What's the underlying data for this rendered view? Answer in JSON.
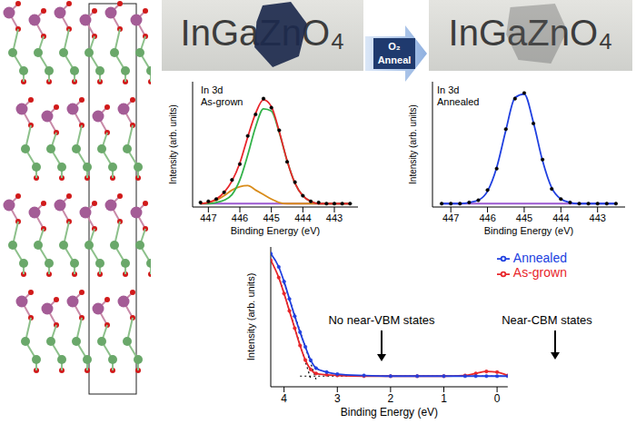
{
  "photos": [
    {
      "text": "InGaZnO₄"
    },
    {
      "text": "InGaZnO₄"
    }
  ],
  "arrow_label": "O₂ Anneal",
  "chart_data": [
    {
      "type": "line",
      "title": "In 3d",
      "subtitle": "As-grown",
      "x_label": "Binding Energy (eV)",
      "y_label": "Intensity (arb. units)",
      "x": [
        447.25,
        447.0,
        446.75,
        446.5,
        446.25,
        446.0,
        445.75,
        445.5,
        445.25,
        445.0,
        444.75,
        444.5,
        444.25,
        444.0,
        443.75,
        443.5,
        443.25,
        443.0,
        442.75,
        442.5
      ],
      "xlim": [
        447.5,
        442.25
      ],
      "xticks": [
        447,
        446,
        445,
        444,
        443
      ],
      "ylim": [
        -0.03,
        1.08
      ],
      "tick_labels": "x",
      "series": [
        {
          "color": "#9b59d0",
          "values": [
            0,
            0,
            0,
            0,
            0,
            0,
            0,
            0,
            0,
            0,
            0,
            0,
            0,
            0,
            0,
            0,
            0,
            0,
            0,
            0
          ]
        },
        {
          "color": "#d98c1a",
          "values": [
            0,
            0.01,
            0.03,
            0.07,
            0.12,
            0.15,
            0.16,
            0.12,
            0.08,
            0.04,
            0.01,
            0,
            0,
            0,
            0,
            0,
            0,
            0,
            0,
            0
          ]
        },
        {
          "color": "#33b24a",
          "values": [
            0,
            0,
            0.01,
            0.03,
            0.08,
            0.21,
            0.43,
            0.68,
            0.84,
            0.82,
            0.63,
            0.38,
            0.18,
            0.07,
            0.02,
            0,
            0,
            0,
            0,
            0
          ]
        },
        {
          "color": "#e8262b",
          "values": [
            0,
            0.01,
            0.04,
            0.1,
            0.2,
            0.36,
            0.59,
            0.8,
            0.92,
            0.86,
            0.64,
            0.38,
            0.18,
            0.07,
            0.02,
            0,
            0,
            0,
            0,
            0
          ]
        },
        {
          "color": "#000000",
          "marker": "circle",
          "line_style": "none",
          "values": [
            0.01,
            0.02,
            0.04,
            0.1,
            0.21,
            0.35,
            0.6,
            0.79,
            0.93,
            0.85,
            0.65,
            0.37,
            0.19,
            0.07,
            0.02,
            0.01,
            0,
            0,
            0,
            0
          ]
        }
      ]
    },
    {
      "type": "line",
      "title": "In 3d",
      "subtitle": "Annealed",
      "x_label": "Binding Energy (eV)",
      "y_label": "Intensity (arb. units)",
      "x": [
        447.25,
        447.0,
        446.75,
        446.5,
        446.25,
        446.0,
        445.75,
        445.5,
        445.25,
        445.0,
        444.75,
        444.5,
        444.25,
        444.0,
        443.75,
        443.5,
        443.25,
        443.0,
        442.75,
        442.5
      ],
      "xlim": [
        447.5,
        442.25
      ],
      "xticks": [
        447,
        446,
        445,
        444,
        443
      ],
      "ylim": [
        -0.03,
        1.08
      ],
      "tick_labels": "x",
      "series": [
        {
          "color": "#9b59d0",
          "values": [
            0,
            0,
            0,
            0,
            0,
            0,
            0,
            0,
            0,
            0,
            0,
            0,
            0,
            0,
            0,
            0,
            0,
            0,
            0,
            0
          ]
        },
        {
          "color": "#2040e0",
          "values": [
            0,
            0,
            0,
            0.01,
            0.03,
            0.11,
            0.32,
            0.65,
            0.94,
            0.97,
            0.72,
            0.38,
            0.14,
            0.04,
            0.01,
            0,
            0,
            0,
            0,
            0
          ]
        },
        {
          "color": "#000000",
          "marker": "circle",
          "line_style": "none",
          "values": [
            0,
            0,
            0,
            0.01,
            0.03,
            0.12,
            0.31,
            0.66,
            0.93,
            0.98,
            0.71,
            0.39,
            0.13,
            0.04,
            0.01,
            0,
            0,
            0,
            0,
            0
          ]
        }
      ]
    },
    {
      "type": "line",
      "x_label": "Binding Energy (eV)",
      "y_label": "Intensity (arb. units)",
      "annotations": [
        "No near-VBM states",
        "Near-CBM states"
      ],
      "legend": "upper right",
      "x": [
        4.25,
        4.1,
        4.0,
        3.9,
        3.8,
        3.7,
        3.6,
        3.5,
        3.4,
        3.2,
        3.0,
        2.5,
        2.0,
        1.5,
        1.0,
        0.6,
        0.4,
        0.2,
        0.0,
        -0.2
      ],
      "xlim": [
        4.25,
        -0.2
      ],
      "xticks": [
        4,
        3,
        2,
        1,
        0
      ],
      "ylim": [
        0,
        1.05
      ],
      "tick_labels": "x",
      "series": [
        {
          "color": "#000000",
          "line_style": "dotted",
          "x": [
            4.1,
            3.5
          ],
          "values": [
            0.83,
            0.06
          ]
        },
        {
          "color": "#000000",
          "line_style": "dotted",
          "x": [
            4.0,
            3.4
          ],
          "values": [
            0.78,
            0.056
          ]
        },
        {
          "color": "#000000",
          "line_style": "dotted",
          "x": [
            3.7,
            -0.2
          ],
          "values": [
            0.08,
            0.08
          ]
        },
        {
          "name": "As-grown",
          "color": "#e8262b",
          "marker": "circle",
          "values": [
            0.95,
            0.82,
            0.7,
            0.57,
            0.44,
            0.31,
            0.2,
            0.13,
            0.1,
            0.09,
            0.085,
            0.08,
            0.08,
            0.08,
            0.08,
            0.085,
            0.1,
            0.115,
            0.11,
            0.085
          ]
        },
        {
          "name": "Annealed",
          "color": "#2040e0",
          "marker": "circle",
          "values": [
            1.0,
            0.9,
            0.79,
            0.66,
            0.53,
            0.41,
            0.3,
            0.2,
            0.14,
            0.11,
            0.095,
            0.085,
            0.08,
            0.08,
            0.08,
            0.08,
            0.08,
            0.08,
            0.08,
            0.08
          ]
        }
      ]
    }
  ]
}
